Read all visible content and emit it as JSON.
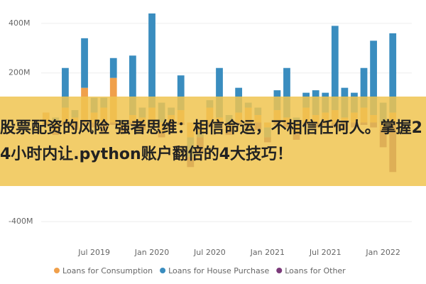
{
  "chart_data": {
    "type": "bar",
    "stacked": true,
    "categories": [
      null,
      null,
      null,
      null,
      null,
      "Jul 2019",
      null,
      null,
      null,
      null,
      null,
      "Jan 2020",
      null,
      null,
      null,
      null,
      null,
      "Jul 2020",
      null,
      null,
      null,
      null,
      null,
      "Jan 2021",
      null,
      null,
      null,
      null,
      null,
      "Jul 2021",
      null,
      null,
      null,
      null,
      null,
      "Jan 2022",
      null
    ],
    "series": [
      {
        "name": "Loans for Consumption",
        "color": "#f0a04b",
        "values": [
          40000000.0,
          -30000000.0,
          60000000.0,
          20000000.0,
          140000000.0,
          40000000.0,
          60000000.0,
          180000000.0,
          -20000000.0,
          30000000.0,
          20000000.0,
          60000000.0,
          -40000000.0,
          30000000.0,
          50000000.0,
          -60000000.0,
          -40000000.0,
          60000000.0,
          20000000.0,
          -30000000.0,
          40000000.0,
          60000000.0,
          30000000.0,
          -20000000.0,
          50000000.0,
          20000000.0,
          -40000000.0,
          60000000.0,
          30000000.0,
          40000000.0,
          50000000.0,
          20000000.0,
          40000000.0,
          60000000.0,
          30000000.0,
          -30000000.0,
          40000000.0
        ]
      },
      {
        "name": "Loans for House Purchase",
        "color": "#3a8dbf",
        "values": [
          0,
          20000000.0,
          160000000.0,
          30000000.0,
          200000000.0,
          60000000.0,
          40000000.0,
          80000000.0,
          10000000.0,
          240000000.0,
          40000000.0,
          380000000.0,
          80000000.0,
          30000000.0,
          140000000.0,
          -80000000.0,
          -20000000.0,
          30000000.0,
          200000000.0,
          30000000.0,
          100000000.0,
          20000000.0,
          30000000.0,
          -40000000.0,
          80000000.0,
          200000000.0,
          20000000.0,
          60000000.0,
          100000000.0,
          80000000.0,
          340000000.0,
          120000000.0,
          80000000.0,
          160000000.0,
          300000000.0,
          80000000.0,
          320000000.0
        ]
      },
      {
        "name": "Loans for Other",
        "color": "#7b3a7a",
        "values": [
          -10000000.0,
          -20000000.0,
          -10000000.0,
          -30000000.0,
          -10000000.0,
          -20000000.0,
          -40000000.0,
          -10000000.0,
          -20000000.0,
          -10000000.0,
          -30000000.0,
          -10000000.0,
          -20000000.0,
          -30000000.0,
          -10000000.0,
          -40000000.0,
          -60000000.0,
          -20000000.0,
          -10000000.0,
          -20000000.0,
          -10000000.0,
          -20000000.0,
          -30000000.0,
          -20000000.0,
          -10000000.0,
          -20000000.0,
          -30000000.0,
          -10000000.0,
          -20000000.0,
          -10000000.0,
          -20000000.0,
          -30000000.0,
          -20000000.0,
          -10000000.0,
          -20000000.0,
          -70000000.0,
          -200000000.0
        ]
      }
    ],
    "ylim": [
      -480000000.0,
      480000000.0
    ],
    "yticks": [
      {
        "value": 400000000.0,
        "label": "400M"
      },
      {
        "value": 200000000.0,
        "label": "200M"
      },
      {
        "value": -400000000.0,
        "label": "-400M"
      }
    ],
    "grid": true,
    "legend": "bottom"
  },
  "overlay": {
    "text": "股票配资的风险 强者思维：相信命运，不相信任何人。掌握24小时内让.python账户翻倍的4大技巧！"
  }
}
